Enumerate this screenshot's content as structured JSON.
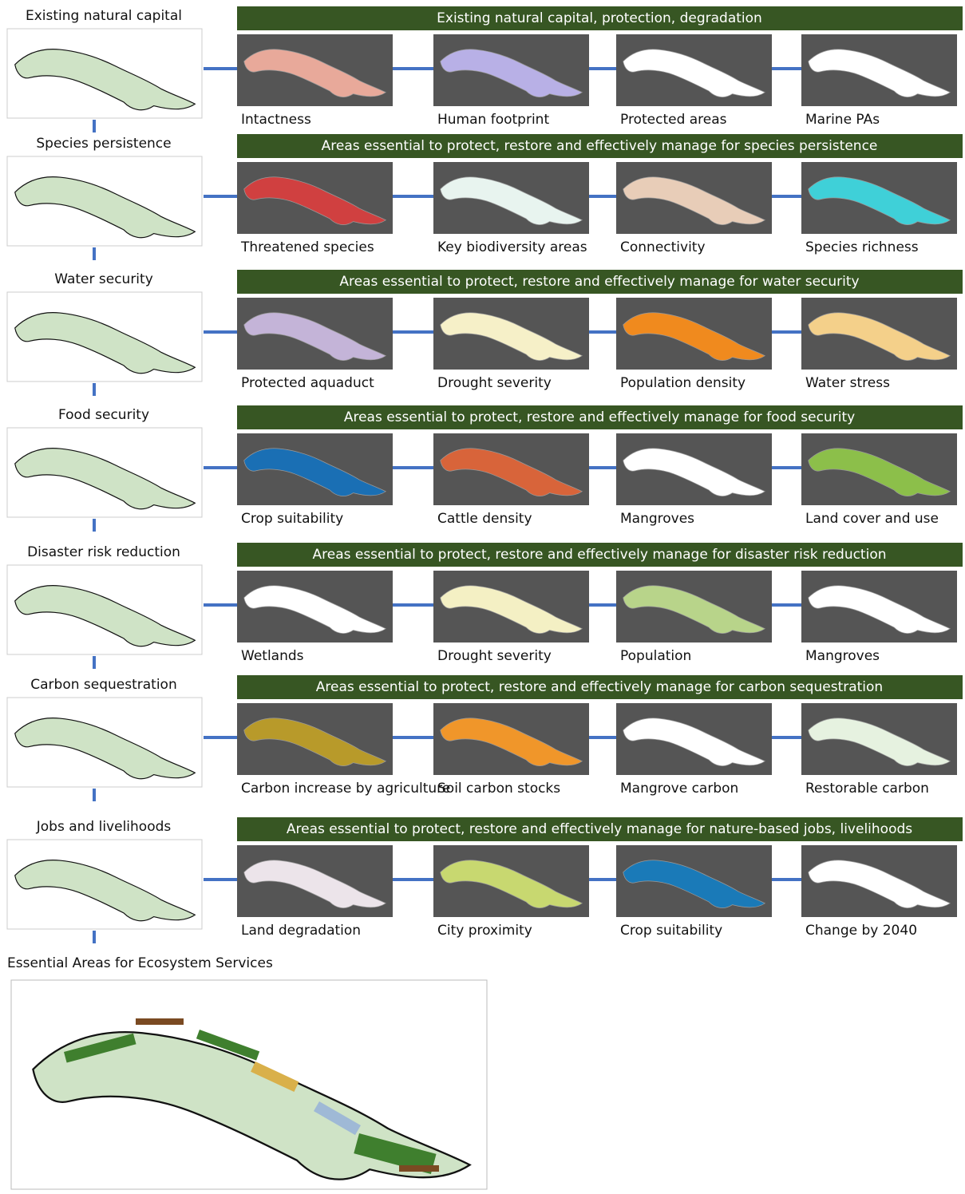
{
  "rows": [
    {
      "label": "Existing natural capital",
      "banner": "Existing natural capital, protection, degradation",
      "maps": [
        "Intactness",
        "Human footprint",
        "Protected areas",
        "Marine PAs"
      ]
    },
    {
      "label": "Species persistence",
      "banner": "Areas essential to protect, restore and effectively manage for species persistence",
      "maps": [
        "Threatened species",
        "Key biodiversity areas",
        "Connectivity",
        "Species richness"
      ]
    },
    {
      "label": "Water security",
      "banner": "Areas essential to protect, restore and effectively manage for water security",
      "maps": [
        "Protected aquaduct",
        "Drought severity",
        "Population density",
        "Water stress"
      ]
    },
    {
      "label": "Food security",
      "banner": "Areas essential to protect, restore and effectively manage for food security",
      "maps": [
        "Crop suitability",
        "Cattle density",
        "Mangroves",
        "Land cover and use"
      ]
    },
    {
      "label": "Disaster risk reduction",
      "banner": "Areas essential to protect, restore and effectively manage for disaster risk reduction",
      "maps": [
        "Wetlands",
        "Drought severity",
        "Population",
        "Mangroves"
      ]
    },
    {
      "label": "Carbon sequestration",
      "banner": "Areas essential to protect, restore and effectively manage for carbon sequestration",
      "maps": [
        "Carbon increase by agriculture",
        "Soil carbon stocks",
        "Mangrove carbon",
        "Restorable carbon"
      ]
    },
    {
      "label": "Jobs and livelihoods",
      "banner": "Areas essential to protect, restore and effectively manage for nature-based jobs, livelihoods",
      "maps": [
        "Land degradation",
        "City proximity",
        "Crop suitability",
        "Change by 2040"
      ]
    }
  ],
  "result": {
    "label": "Essential Areas for Ecosystem Services"
  }
}
